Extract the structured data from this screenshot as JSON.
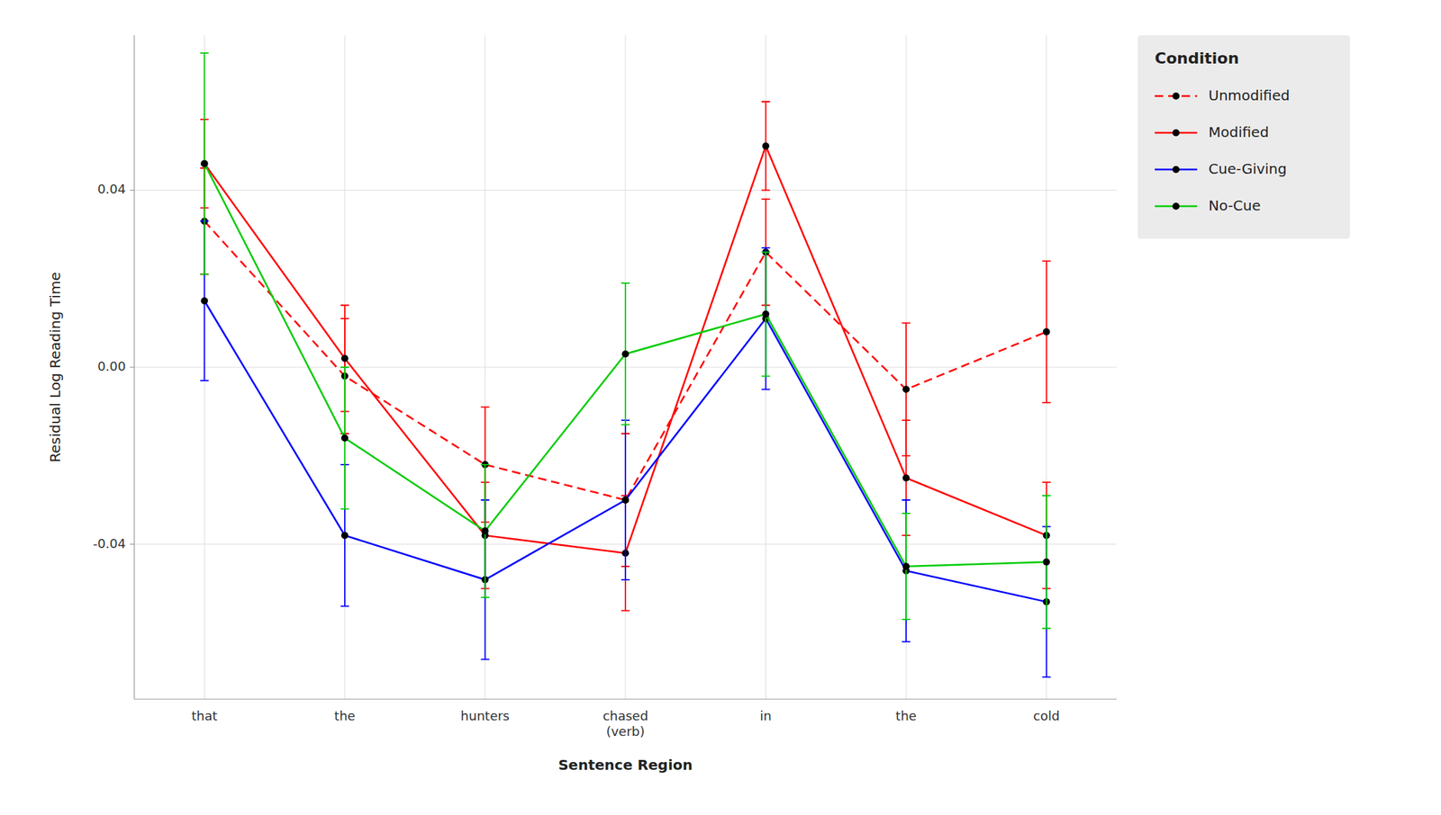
{
  "chart_data": {
    "type": "line",
    "categories": [
      "that",
      "the",
      "hunters",
      "chased\n(verb)",
      "in",
      "the",
      "cold"
    ],
    "series": [
      {
        "name": "Unmodified",
        "color": "#FF0000",
        "line_style": "dashed",
        "marker": "circle",
        "values": [
          0.033,
          -0.002,
          -0.022,
          -0.03,
          0.026,
          -0.005,
          0.008
        ],
        "errors": [
          0.012,
          0.013,
          0.013,
          0.015,
          0.012,
          0.015,
          0.016
        ]
      },
      {
        "name": "Modified",
        "color": "#FF0000",
        "line_style": "solid",
        "marker": "circle",
        "values": [
          0.046,
          0.002,
          -0.038,
          -0.042,
          0.05,
          -0.025,
          -0.038
        ],
        "errors": [
          0.01,
          0.012,
          0.012,
          0.013,
          0.01,
          0.013,
          0.012
        ]
      },
      {
        "name": "Cue-Giving",
        "color": "#0000FF",
        "line_style": "solid",
        "marker": "circle",
        "values": [
          0.015,
          -0.038,
          -0.048,
          -0.03,
          0.011,
          -0.046,
          -0.053
        ],
        "errors": [
          0.018,
          0.016,
          0.018,
          0.018,
          0.016,
          0.016,
          0.017
        ]
      },
      {
        "name": "No-Cue",
        "color": "#00CC00",
        "line_style": "solid",
        "marker": "circle",
        "values": [
          0.046,
          -0.016,
          -0.037,
          0.003,
          0.012,
          -0.045,
          -0.044
        ],
        "errors": [
          0.025,
          0.016,
          0.015,
          0.016,
          0.014,
          0.012,
          0.015
        ]
      }
    ],
    "xlabel": "Sentence Region",
    "ylabel": "Residual Log Reading Time",
    "legend_title": "Condition",
    "ylim": [
      -0.075,
      0.075
    ],
    "yticks": [
      -0.04,
      {
        "value": 0,
        "label": "0.00"
      },
      0.04
    ],
    "grid": true,
    "legend": "right"
  }
}
